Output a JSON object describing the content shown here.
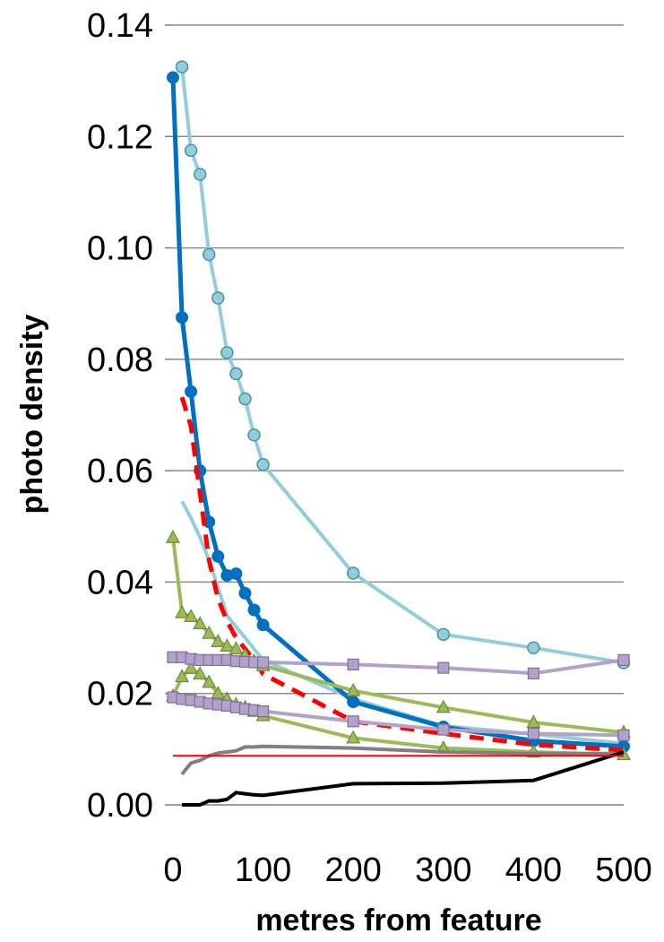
{
  "chart_data": {
    "type": "line",
    "title": "",
    "xlabel": "metres from feature",
    "ylabel": "photo density",
    "xlim": [
      0,
      500
    ],
    "ylim": [
      0,
      0.14
    ],
    "grid": "horizontal",
    "legend": "none",
    "x_ticks": [
      "0",
      "100",
      "200",
      "300",
      "400",
      "500"
    ],
    "y_ticks": [
      "0.00",
      "0.02",
      "0.04",
      "0.06",
      "0.08",
      "0.10",
      "0.12",
      "0.14"
    ],
    "series": [
      {
        "color": "#92cddc",
        "marker": "circle",
        "dash": false,
        "width": 4,
        "points": [
          [
            10,
            0.1325
          ],
          [
            20,
            0.1175
          ],
          [
            30,
            0.1132
          ],
          [
            40,
            0.0988
          ],
          [
            50,
            0.091
          ],
          [
            60,
            0.0812
          ],
          [
            70,
            0.0774
          ],
          [
            80,
            0.0729
          ],
          [
            90,
            0.0664
          ],
          [
            100,
            0.0611
          ],
          [
            200,
            0.0416
          ],
          [
            300,
            0.0306
          ],
          [
            400,
            0.0282
          ],
          [
            500,
            0.0255
          ]
        ]
      },
      {
        "color": "#92cddc",
        "marker": "none",
        "dash": false,
        "width": 4,
        "points": [
          [
            10,
            0.0545
          ],
          [
            20,
            0.0515
          ],
          [
            30,
            0.048
          ],
          [
            40,
            0.044
          ],
          [
            50,
            0.039
          ],
          [
            60,
            0.034
          ],
          [
            70,
            0.032
          ],
          [
            80,
            0.03
          ],
          [
            90,
            0.028
          ],
          [
            100,
            0.026
          ],
          [
            200,
            0.019
          ],
          [
            300,
            0.0142
          ],
          [
            400,
            0.0127
          ],
          [
            500,
            0.011
          ]
        ]
      },
      {
        "color": "#0070c0",
        "marker": "filled-circle",
        "dash": false,
        "width": 5,
        "points": [
          [
            0,
            0.1306
          ],
          [
            10,
            0.0875
          ],
          [
            20,
            0.0742
          ],
          [
            30,
            0.06
          ],
          [
            40,
            0.0508
          ],
          [
            50,
            0.0446
          ],
          [
            60,
            0.0412
          ],
          [
            70,
            0.0415
          ],
          [
            80,
            0.038
          ],
          [
            90,
            0.035
          ],
          [
            100,
            0.0323
          ],
          [
            200,
            0.0185
          ],
          [
            300,
            0.014
          ],
          [
            400,
            0.0115
          ],
          [
            500,
            0.0105
          ]
        ]
      },
      {
        "color": "#ff0000",
        "marker": "none",
        "dash": true,
        "width": 5,
        "points": [
          [
            10,
            0.0732
          ],
          [
            20,
            0.068
          ],
          [
            30,
            0.056
          ],
          [
            40,
            0.044
          ],
          [
            50,
            0.037
          ],
          [
            60,
            0.033
          ],
          [
            70,
            0.03
          ],
          [
            80,
            0.028
          ],
          [
            90,
            0.026
          ],
          [
            100,
            0.0235
          ],
          [
            200,
            0.015
          ],
          [
            300,
            0.0128
          ],
          [
            400,
            0.0108
          ],
          [
            500,
            0.0098
          ]
        ]
      },
      {
        "color": "#9bbb59",
        "marker": "triangle",
        "dash": false,
        "width": 4,
        "points": [
          [
            0,
            0.048
          ],
          [
            10,
            0.0345
          ],
          [
            20,
            0.0338
          ],
          [
            30,
            0.0325
          ],
          [
            40,
            0.0308
          ],
          [
            50,
            0.0293
          ],
          [
            60,
            0.0285
          ],
          [
            70,
            0.028
          ],
          [
            80,
            0.0268
          ],
          [
            90,
            0.0258
          ],
          [
            100,
            0.025
          ],
          [
            200,
            0.0205
          ],
          [
            300,
            0.0175
          ],
          [
            400,
            0.0148
          ],
          [
            500,
            0.013
          ]
        ]
      },
      {
        "color": "#9bbb59",
        "marker": "triangle",
        "dash": false,
        "width": 4,
        "points": [
          [
            0,
            0.0195
          ],
          [
            10,
            0.023
          ],
          [
            20,
            0.0245
          ],
          [
            30,
            0.0235
          ],
          [
            40,
            0.022
          ],
          [
            50,
            0.02
          ],
          [
            60,
            0.019
          ],
          [
            70,
            0.018
          ],
          [
            80,
            0.0175
          ],
          [
            90,
            0.0168
          ],
          [
            100,
            0.016
          ],
          [
            200,
            0.012
          ],
          [
            300,
            0.0102
          ],
          [
            400,
            0.0095
          ],
          [
            500,
            0.009
          ]
        ]
      },
      {
        "color": "#b3a2c7",
        "marker": "square",
        "dash": false,
        "width": 4,
        "points": [
          [
            0,
            0.0265
          ],
          [
            10,
            0.0265
          ],
          [
            20,
            0.0262
          ],
          [
            30,
            0.026
          ],
          [
            40,
            0.026
          ],
          [
            50,
            0.026
          ],
          [
            60,
            0.026
          ],
          [
            70,
            0.0258
          ],
          [
            80,
            0.0257
          ],
          [
            90,
            0.0256
          ],
          [
            100,
            0.0256
          ],
          [
            200,
            0.0252
          ],
          [
            300,
            0.0246
          ],
          [
            400,
            0.0236
          ],
          [
            500,
            0.026
          ]
        ]
      },
      {
        "color": "#b3a2c7",
        "marker": "square",
        "dash": false,
        "width": 4,
        "points": [
          [
            0,
            0.0193
          ],
          [
            10,
            0.019
          ],
          [
            20,
            0.0188
          ],
          [
            30,
            0.0185
          ],
          [
            40,
            0.0182
          ],
          [
            50,
            0.018
          ],
          [
            60,
            0.0178
          ],
          [
            70,
            0.0175
          ],
          [
            80,
            0.0172
          ],
          [
            90,
            0.017
          ],
          [
            100,
            0.0168
          ],
          [
            200,
            0.015
          ],
          [
            300,
            0.0135
          ],
          [
            400,
            0.0128
          ],
          [
            500,
            0.0125
          ]
        ]
      },
      {
        "color": "#808080",
        "marker": "none",
        "dash": false,
        "width": 4,
        "points": [
          [
            10,
            0.0055
          ],
          [
            20,
            0.0075
          ],
          [
            30,
            0.008
          ],
          [
            40,
            0.0088
          ],
          [
            50,
            0.0093
          ],
          [
            60,
            0.0095
          ],
          [
            70,
            0.0097
          ],
          [
            80,
            0.0104
          ],
          [
            90,
            0.0104
          ],
          [
            100,
            0.0105
          ],
          [
            200,
            0.0102
          ],
          [
            300,
            0.0095
          ],
          [
            400,
            0.0092
          ],
          [
            500,
            0.0092
          ]
        ]
      },
      {
        "color": "#000000",
        "marker": "none",
        "dash": false,
        "width": 4,
        "points": [
          [
            10,
            0.0
          ],
          [
            20,
            0.0
          ],
          [
            30,
            0.0
          ],
          [
            40,
            0.0007
          ],
          [
            50,
            0.0007
          ],
          [
            60,
            0.001
          ],
          [
            70,
            0.0022
          ],
          [
            80,
            0.002
          ],
          [
            90,
            0.0018
          ],
          [
            100,
            0.0017
          ],
          [
            200,
            0.0038
          ],
          [
            300,
            0.0039
          ],
          [
            400,
            0.0044
          ],
          [
            500,
            0.0095
          ]
        ]
      },
      {
        "color": "#ff0000",
        "marker": "none",
        "dash": false,
        "width": 2,
        "points": [
          [
            0,
            0.0088
          ],
          [
            500,
            0.0088
          ]
        ]
      }
    ]
  }
}
